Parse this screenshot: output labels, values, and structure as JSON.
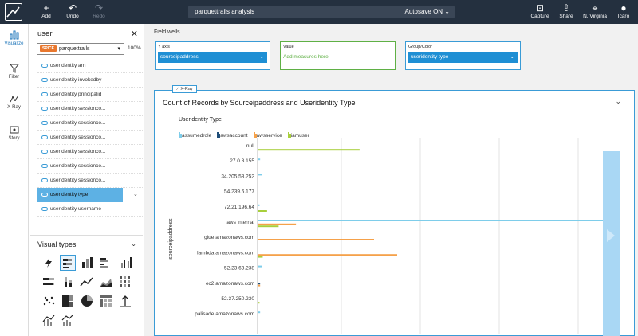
{
  "topbar": {
    "add_label": "Add",
    "undo_label": "Undo",
    "redo_label": "Redo",
    "analysis_name": "parquettrails analysis",
    "autosave_label": "Autosave ON",
    "capture_label": "Capture",
    "share_label": "Share",
    "region_label": "N. Virginia",
    "user_label": "Icaro"
  },
  "rail": {
    "items": [
      {
        "label": "Visualize",
        "icon": "bar-chart-icon"
      },
      {
        "label": "Filter",
        "icon": "funnel-icon"
      },
      {
        "label": "X-Ray",
        "icon": "xray-icon"
      },
      {
        "label": "Story",
        "icon": "story-icon"
      }
    ]
  },
  "fields_panel": {
    "search_value": "user",
    "spice_badge": "SPICE",
    "dataset_name": "parquettrails",
    "spice_percent": "100%",
    "fields": [
      "useridentity arn",
      "useridentity invokedby",
      "useridentity principalid",
      "useridentity sessionco...",
      "useridentity sessionco...",
      "useridentity sessionco...",
      "useridentity sessionco...",
      "useridentity sessionco...",
      "useridentity sessionco...",
      "useridentity type",
      "useridentity username"
    ],
    "selected_index": 9
  },
  "visual_types": {
    "title": "Visual types"
  },
  "field_wells": {
    "title": "Field wells",
    "y_axis_label": "Y axis",
    "y_axis_field": "sourceipaddress",
    "value_label": "Value",
    "value_placeholder": "Add measures here",
    "group_label": "Group/Color",
    "group_field": "useridentity type"
  },
  "visual": {
    "xray_tag": "X-Ray",
    "title": "Count of Records by Sourceipaddress and Useridentity Type",
    "legend_title": "Useridentity Type"
  },
  "colors": {
    "assumedrole": "#7ecdea",
    "awsaccount": "#1f4e79",
    "awsservice": "#f5a14a",
    "iamuser": "#a8cf3c",
    "accent": "#3a9bd6",
    "topbar": "#24303f"
  },
  "chart_data": {
    "type": "bar",
    "orientation": "horizontal",
    "title": "Count of Records by Sourceipaddress and Useridentity Type",
    "ylabel": "sourceipaddress",
    "legend_title": "Useridentity Type",
    "legend_position": "top-left",
    "grid": true,
    "xlim": [
      0,
      120
    ],
    "categories": [
      "null",
      "27.0.3.155",
      "34.205.53.252",
      "54.239.6.177",
      "72.21.196.64",
      "aws internal",
      "glue.amazonaws.com",
      "lambda.amazonaws.com",
      "52.23.63.238",
      "ec2.amazonaws.com",
      "52.37.250.230",
      "palisade.amazonaws.com"
    ],
    "series": [
      {
        "name": "assumedrole",
        "values": [
          0,
          0.6,
          1.2,
          0,
          0.4,
          120,
          0,
          0,
          1.2,
          0,
          0,
          0.6
        ]
      },
      {
        "name": "awsaccount",
        "values": [
          0,
          0,
          0,
          0,
          0,
          0,
          0,
          0,
          0,
          0.6,
          0,
          0
        ]
      },
      {
        "name": "awsservice",
        "values": [
          0,
          0,
          0,
          0,
          0,
          13,
          40,
          48,
          0,
          0.6,
          0,
          0
        ]
      },
      {
        "name": "iamuser",
        "values": [
          35,
          0,
          0,
          0,
          3,
          7,
          0,
          1.5,
          0,
          0,
          0.4,
          0
        ]
      }
    ]
  }
}
